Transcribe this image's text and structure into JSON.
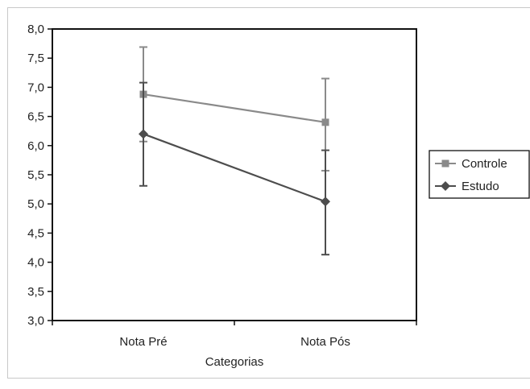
{
  "chart_data": {
    "type": "line",
    "title": "",
    "xlabel": "Categorias",
    "ylabel": "",
    "categories": [
      "Nota Pré",
      "Nota Pós"
    ],
    "ylim": [
      3.0,
      8.0
    ],
    "yticks": [
      3.0,
      3.5,
      4.0,
      4.5,
      5.0,
      5.5,
      6.0,
      6.5,
      7.0,
      7.5,
      8.0
    ],
    "ytick_labels": [
      "3,0",
      "3,5",
      "4,0",
      "4,5",
      "5,0",
      "5,5",
      "6,0",
      "6,5",
      "7,0",
      "7,5",
      "8,0"
    ],
    "grid": false,
    "legend_position": "right",
    "error_bars": true,
    "series": [
      {
        "name": "Controle",
        "marker": "square",
        "color": "#8a8a8a",
        "values": [
          6.88,
          6.4
        ],
        "err_low": [
          6.07,
          5.57
        ],
        "err_high": [
          7.69,
          7.15
        ]
      },
      {
        "name": "Estudo",
        "marker": "diamond",
        "color": "#4d4d4d",
        "values": [
          6.2,
          5.04
        ],
        "err_low": [
          5.31,
          4.13
        ],
        "err_high": [
          7.08,
          5.92
        ]
      }
    ]
  }
}
